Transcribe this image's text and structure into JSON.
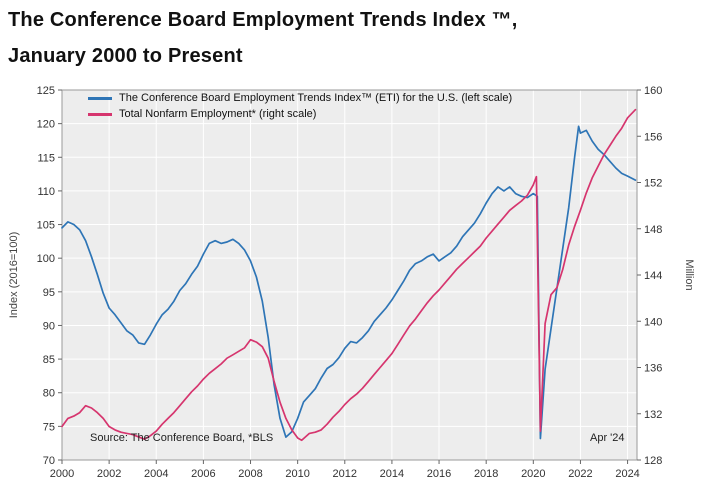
{
  "title": {
    "line1": "The Conference Board Employment Trends Index ™,",
    "line2": "January 2000 to Present"
  },
  "legend": [
    {
      "label": "The Conference Board Employment Trends Index™ (ETI) for the U.S. (left scale)",
      "color": "#2e75b6"
    },
    {
      "label": "Total Nonfarm Employment* (right scale)",
      "color": "#d6356e"
    }
  ],
  "annotations": {
    "source": "Source: The Conference Board, *BLS",
    "latest": "Apr '24"
  },
  "chart_data": {
    "type": "line",
    "title": "The Conference Board Employment Trends Index ™, January 2000 to Present",
    "x_range": [
      2000,
      2024.4
    ],
    "x_ticks": [
      2000,
      2002,
      2004,
      2006,
      2008,
      2010,
      2012,
      2014,
      2016,
      2018,
      2020,
      2022,
      2024
    ],
    "left_axis": {
      "label": "Index (2016=100)",
      "range": [
        70,
        125
      ],
      "ticks": [
        70,
        75,
        80,
        85,
        90,
        95,
        100,
        105,
        110,
        115,
        120,
        125
      ]
    },
    "right_axis": {
      "label": "Million",
      "range": [
        128,
        160
      ],
      "ticks": [
        128,
        132,
        136,
        140,
        144,
        148,
        152,
        156,
        160
      ]
    },
    "grid": true,
    "legend_position": "top-left-inside",
    "colors": {
      "plot_bg": "#ededed",
      "grid": "#ffffff",
      "border": "#9a9a9a"
    },
    "series": [
      {
        "name": "The Conference Board Employment Trends Index™ (ETI) for the U.S.",
        "axis": "left",
        "color": "#2e75b6",
        "points": [
          [
            2000.0,
            104.5
          ],
          [
            2000.25,
            105.4
          ],
          [
            2000.5,
            105.0
          ],
          [
            2000.75,
            104.2
          ],
          [
            2001.0,
            102.6
          ],
          [
            2001.25,
            100.2
          ],
          [
            2001.5,
            97.6
          ],
          [
            2001.75,
            94.8
          ],
          [
            2002.0,
            92.6
          ],
          [
            2002.25,
            91.6
          ],
          [
            2002.5,
            90.4
          ],
          [
            2002.75,
            89.2
          ],
          [
            2003.0,
            88.6
          ],
          [
            2003.25,
            87.4
          ],
          [
            2003.5,
            87.2
          ],
          [
            2003.75,
            88.6
          ],
          [
            2004.0,
            90.2
          ],
          [
            2004.25,
            91.6
          ],
          [
            2004.5,
            92.4
          ],
          [
            2004.75,
            93.6
          ],
          [
            2005.0,
            95.2
          ],
          [
            2005.25,
            96.2
          ],
          [
            2005.5,
            97.6
          ],
          [
            2005.75,
            98.8
          ],
          [
            2006.0,
            100.6
          ],
          [
            2006.25,
            102.2
          ],
          [
            2006.5,
            102.6
          ],
          [
            2006.75,
            102.2
          ],
          [
            2007.0,
            102.4
          ],
          [
            2007.25,
            102.8
          ],
          [
            2007.5,
            102.2
          ],
          [
            2007.75,
            101.2
          ],
          [
            2008.0,
            99.6
          ],
          [
            2008.25,
            97.2
          ],
          [
            2008.5,
            93.6
          ],
          [
            2008.75,
            88.2
          ],
          [
            2009.0,
            81.2
          ],
          [
            2009.25,
            76.2
          ],
          [
            2009.5,
            73.4
          ],
          [
            2009.75,
            74.2
          ],
          [
            2010.0,
            76.2
          ],
          [
            2010.25,
            78.6
          ],
          [
            2010.5,
            79.6
          ],
          [
            2010.75,
            80.6
          ],
          [
            2011.0,
            82.2
          ],
          [
            2011.25,
            83.6
          ],
          [
            2011.5,
            84.2
          ],
          [
            2011.75,
            85.2
          ],
          [
            2012.0,
            86.6
          ],
          [
            2012.25,
            87.6
          ],
          [
            2012.5,
            87.4
          ],
          [
            2012.75,
            88.2
          ],
          [
            2013.0,
            89.2
          ],
          [
            2013.25,
            90.6
          ],
          [
            2013.5,
            91.6
          ],
          [
            2013.75,
            92.6
          ],
          [
            2014.0,
            93.8
          ],
          [
            2014.25,
            95.2
          ],
          [
            2014.5,
            96.6
          ],
          [
            2014.75,
            98.2
          ],
          [
            2015.0,
            99.2
          ],
          [
            2015.25,
            99.6
          ],
          [
            2015.5,
            100.2
          ],
          [
            2015.75,
            100.6
          ],
          [
            2016.0,
            99.6
          ],
          [
            2016.25,
            100.2
          ],
          [
            2016.5,
            100.8
          ],
          [
            2016.75,
            101.8
          ],
          [
            2017.0,
            103.2
          ],
          [
            2017.25,
            104.2
          ],
          [
            2017.5,
            105.2
          ],
          [
            2017.75,
            106.6
          ],
          [
            2018.0,
            108.2
          ],
          [
            2018.25,
            109.6
          ],
          [
            2018.5,
            110.6
          ],
          [
            2018.75,
            110.0
          ],
          [
            2019.0,
            110.6
          ],
          [
            2019.25,
            109.6
          ],
          [
            2019.5,
            109.2
          ],
          [
            2019.75,
            109.0
          ],
          [
            2020.0,
            109.6
          ],
          [
            2020.17,
            109.2
          ],
          [
            2020.3,
            73.2
          ],
          [
            2020.5,
            83.5
          ],
          [
            2020.75,
            89.5
          ],
          [
            2021.0,
            95.5
          ],
          [
            2021.25,
            101.5
          ],
          [
            2021.5,
            107.5
          ],
          [
            2021.75,
            115.0
          ],
          [
            2021.92,
            119.6
          ],
          [
            2022.0,
            118.6
          ],
          [
            2022.25,
            119.0
          ],
          [
            2022.5,
            117.4
          ],
          [
            2022.75,
            116.2
          ],
          [
            2023.0,
            115.4
          ],
          [
            2023.25,
            114.4
          ],
          [
            2023.5,
            113.4
          ],
          [
            2023.75,
            112.6
          ],
          [
            2024.0,
            112.2
          ],
          [
            2024.33,
            111.6
          ]
        ]
      },
      {
        "name": "Total Nonfarm Employment*",
        "axis": "right",
        "color": "#d6356e",
        "points": [
          [
            2000.0,
            130.9
          ],
          [
            2000.25,
            131.6
          ],
          [
            2000.5,
            131.8
          ],
          [
            2000.75,
            132.1
          ],
          [
            2001.0,
            132.7
          ],
          [
            2001.25,
            132.5
          ],
          [
            2001.5,
            132.1
          ],
          [
            2001.75,
            131.6
          ],
          [
            2002.0,
            130.9
          ],
          [
            2002.25,
            130.6
          ],
          [
            2002.5,
            130.4
          ],
          [
            2002.75,
            130.3
          ],
          [
            2003.0,
            130.2
          ],
          [
            2003.25,
            130.0
          ],
          [
            2003.5,
            129.8
          ],
          [
            2003.75,
            130.1
          ],
          [
            2004.0,
            130.5
          ],
          [
            2004.25,
            131.1
          ],
          [
            2004.5,
            131.6
          ],
          [
            2004.75,
            132.1
          ],
          [
            2005.0,
            132.7
          ],
          [
            2005.25,
            133.3
          ],
          [
            2005.5,
            133.9
          ],
          [
            2005.75,
            134.4
          ],
          [
            2006.0,
            135.0
          ],
          [
            2006.25,
            135.5
          ],
          [
            2006.5,
            135.9
          ],
          [
            2006.75,
            136.3
          ],
          [
            2007.0,
            136.8
          ],
          [
            2007.25,
            137.1
          ],
          [
            2007.5,
            137.4
          ],
          [
            2007.75,
            137.7
          ],
          [
            2008.0,
            138.4
          ],
          [
            2008.25,
            138.2
          ],
          [
            2008.5,
            137.8
          ],
          [
            2008.75,
            136.8
          ],
          [
            2009.0,
            134.8
          ],
          [
            2009.25,
            133.0
          ],
          [
            2009.5,
            131.6
          ],
          [
            2009.75,
            130.6
          ],
          [
            2010.0,
            129.9
          ],
          [
            2010.17,
            129.7
          ],
          [
            2010.5,
            130.3
          ],
          [
            2010.75,
            130.4
          ],
          [
            2011.0,
            130.6
          ],
          [
            2011.25,
            131.1
          ],
          [
            2011.5,
            131.7
          ],
          [
            2011.75,
            132.2
          ],
          [
            2012.0,
            132.8
          ],
          [
            2012.25,
            133.3
          ],
          [
            2012.5,
            133.7
          ],
          [
            2012.75,
            134.2
          ],
          [
            2013.0,
            134.8
          ],
          [
            2013.25,
            135.4
          ],
          [
            2013.5,
            136.0
          ],
          [
            2013.75,
            136.6
          ],
          [
            2014.0,
            137.2
          ],
          [
            2014.25,
            138.0
          ],
          [
            2014.5,
            138.8
          ],
          [
            2014.75,
            139.6
          ],
          [
            2015.0,
            140.2
          ],
          [
            2015.25,
            140.9
          ],
          [
            2015.5,
            141.6
          ],
          [
            2015.75,
            142.2
          ],
          [
            2016.0,
            142.7
          ],
          [
            2016.25,
            143.3
          ],
          [
            2016.5,
            143.9
          ],
          [
            2016.75,
            144.5
          ],
          [
            2017.0,
            145.0
          ],
          [
            2017.25,
            145.5
          ],
          [
            2017.5,
            146.0
          ],
          [
            2017.75,
            146.5
          ],
          [
            2018.0,
            147.2
          ],
          [
            2018.25,
            147.8
          ],
          [
            2018.5,
            148.4
          ],
          [
            2018.75,
            149.0
          ],
          [
            2019.0,
            149.6
          ],
          [
            2019.25,
            150.0
          ],
          [
            2019.5,
            150.4
          ],
          [
            2019.75,
            150.9
          ],
          [
            2020.0,
            151.8
          ],
          [
            2020.13,
            152.5
          ],
          [
            2020.3,
            130.5
          ],
          [
            2020.5,
            139.8
          ],
          [
            2020.75,
            142.3
          ],
          [
            2021.0,
            142.9
          ],
          [
            2021.25,
            144.5
          ],
          [
            2021.5,
            146.6
          ],
          [
            2021.75,
            148.2
          ],
          [
            2022.0,
            149.6
          ],
          [
            2022.25,
            151.1
          ],
          [
            2022.5,
            152.4
          ],
          [
            2022.75,
            153.4
          ],
          [
            2023.0,
            154.4
          ],
          [
            2023.25,
            155.2
          ],
          [
            2023.5,
            156.0
          ],
          [
            2023.75,
            156.7
          ],
          [
            2024.0,
            157.6
          ],
          [
            2024.33,
            158.3
          ]
        ]
      }
    ]
  }
}
